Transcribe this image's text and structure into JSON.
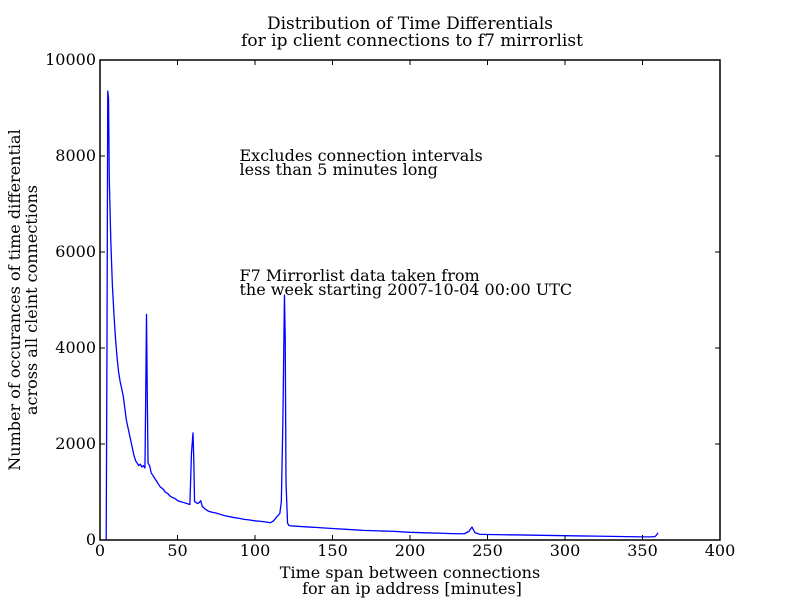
{
  "chart_data": {
    "type": "line",
    "title_lines": [
      "Distribution of Time Differentials",
      "for ip client connections to f7 mirrorlist"
    ],
    "xlabel_lines": [
      "Time span between connections",
      "for an ip address [minutes]"
    ],
    "ylabel_lines": [
      "Number of occurances of time differential",
      "across all cleint connections"
    ],
    "xlim": [
      0,
      400
    ],
    "ylim": [
      0,
      10000
    ],
    "x_ticks": [
      0,
      50,
      100,
      150,
      200,
      250,
      300,
      350,
      400
    ],
    "y_ticks": [
      0,
      2000,
      4000,
      6000,
      8000,
      10000
    ],
    "grid": false,
    "line_color": "#0000ff",
    "annotations": [
      {
        "lines": [
          "Excludes connection intervals",
          " less than 5 minutes long"
        ],
        "x": 90,
        "y": 7900
      },
      {
        "lines": [
          "F7 Mirrorlist data taken from",
          " the week starting 2007-10-04 00:00 UTC"
        ],
        "x": 90,
        "y": 5400
      }
    ],
    "series": [
      {
        "points": [
          [
            4,
            0
          ],
          [
            4.5,
            4000
          ],
          [
            5,
            9350
          ],
          [
            5.5,
            9200
          ],
          [
            6,
            7500
          ],
          [
            7,
            6200
          ],
          [
            8,
            5300
          ],
          [
            9,
            4700
          ],
          [
            10,
            4200
          ],
          [
            11,
            3800
          ],
          [
            12,
            3500
          ],
          [
            13,
            3300
          ],
          [
            14,
            3150
          ],
          [
            15,
            3000
          ],
          [
            16,
            2750
          ],
          [
            17,
            2500
          ],
          [
            18,
            2350
          ],
          [
            19,
            2200
          ],
          [
            20,
            2050
          ],
          [
            21,
            1900
          ],
          [
            22,
            1750
          ],
          [
            23,
            1650
          ],
          [
            24,
            1600
          ],
          [
            25,
            1550
          ],
          [
            26,
            1580
          ],
          [
            27,
            1520
          ],
          [
            28,
            1550
          ],
          [
            29,
            1500
          ],
          [
            29.5,
            3000
          ],
          [
            30,
            4700
          ],
          [
            30.5,
            3000
          ],
          [
            31,
            1600
          ],
          [
            32,
            1550
          ],
          [
            33,
            1400
          ],
          [
            34,
            1350
          ],
          [
            35,
            1300
          ],
          [
            36,
            1250
          ],
          [
            37,
            1200
          ],
          [
            38,
            1150
          ],
          [
            39,
            1100
          ],
          [
            40,
            1080
          ],
          [
            41,
            1050
          ],
          [
            42,
            1000
          ],
          [
            43,
            980
          ],
          [
            44,
            960
          ],
          [
            45,
            920
          ],
          [
            46,
            900
          ],
          [
            47,
            880
          ],
          [
            48,
            870
          ],
          [
            49,
            850
          ],
          [
            50,
            820
          ],
          [
            52,
            800
          ],
          [
            54,
            780
          ],
          [
            56,
            760
          ],
          [
            58,
            740
          ],
          [
            59,
            1800
          ],
          [
            60,
            2230
          ],
          [
            60.5,
            1700
          ],
          [
            61,
            800
          ],
          [
            62,
            780
          ],
          [
            63,
            760
          ],
          [
            64,
            780
          ],
          [
            65,
            820
          ],
          [
            66,
            700
          ],
          [
            68,
            640
          ],
          [
            70,
            600
          ],
          [
            72,
            580
          ],
          [
            75,
            560
          ],
          [
            78,
            530
          ],
          [
            80,
            510
          ],
          [
            83,
            490
          ],
          [
            86,
            470
          ],
          [
            90,
            450
          ],
          [
            93,
            430
          ],
          [
            96,
            420
          ],
          [
            100,
            400
          ],
          [
            103,
            390
          ],
          [
            106,
            380
          ],
          [
            110,
            360
          ],
          [
            112,
            400
          ],
          [
            114,
            480
          ],
          [
            116,
            550
          ],
          [
            117,
            800
          ],
          [
            118,
            2500
          ],
          [
            119,
            5100
          ],
          [
            119.5,
            4200
          ],
          [
            120,
            1200
          ],
          [
            121,
            350
          ],
          [
            122,
            300
          ],
          [
            125,
            290
          ],
          [
            130,
            280
          ],
          [
            135,
            270
          ],
          [
            140,
            260
          ],
          [
            145,
            250
          ],
          [
            150,
            240
          ],
          [
            160,
            220
          ],
          [
            170,
            200
          ],
          [
            180,
            190
          ],
          [
            190,
            180
          ],
          [
            200,
            160
          ],
          [
            210,
            150
          ],
          [
            220,
            140
          ],
          [
            230,
            130
          ],
          [
            235,
            130
          ],
          [
            238,
            180
          ],
          [
            240,
            270
          ],
          [
            242,
            150
          ],
          [
            245,
            120
          ],
          [
            250,
            115
          ],
          [
            260,
            110
          ],
          [
            270,
            105
          ],
          [
            280,
            100
          ],
          [
            290,
            95
          ],
          [
            300,
            90
          ],
          [
            310,
            85
          ],
          [
            320,
            80
          ],
          [
            330,
            75
          ],
          [
            340,
            70
          ],
          [
            350,
            65
          ],
          [
            355,
            65
          ],
          [
            358,
            70
          ],
          [
            359,
            100
          ],
          [
            360,
            150
          ]
        ]
      }
    ]
  }
}
